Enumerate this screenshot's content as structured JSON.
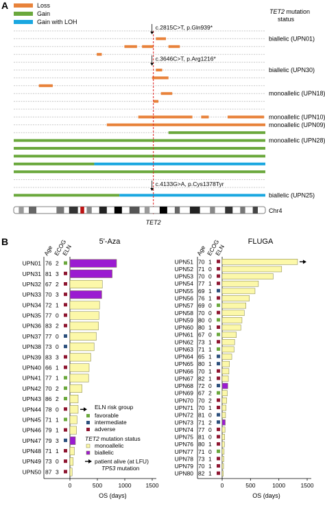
{
  "panel_labels": [
    "A",
    "B"
  ],
  "colors": {
    "loss": "#e8823a",
    "gain": "#6aa83c",
    "gain_loh": "#1aa7e0",
    "favorable": "#6aa83c",
    "intermediate": "#2b4f7c",
    "adverse": "#8e1530",
    "monoallelic": "#fcf8a9",
    "biallelic": "#9b1bd1",
    "tet2_line": "#e02020"
  },
  "panel_a": {
    "legend": [
      "Loss",
      "Gain",
      "Gain with LOH"
    ],
    "status_header": [
      "TET2 mutation",
      "status"
    ],
    "italic_gene": "TET2",
    "gene_label": "TET2",
    "chr_label": "Chr4",
    "mutations": [
      {
        "label": "c.2815C>T, p.Gln939*",
        "row": 0
      },
      {
        "label": "c.3646C>T, p.Arg1216*",
        "row": 4
      },
      {
        "label": "c.4133G>A, p.Cys1378Tyr",
        "row": 20
      }
    ],
    "status_labels": [
      {
        "label": "biallelic (UPN01)",
        "row": 1
      },
      {
        "label": "biallelic (UPN30)",
        "row": 5
      },
      {
        "label": "monoallelic (UPN18)",
        "row": 8
      },
      {
        "label": "monoallelic (UPN10)",
        "row": 11
      },
      {
        "label": "monoallelic (UPN09)",
        "row": 12
      },
      {
        "label": "monoallelic (UPN28)",
        "row": 14
      },
      {
        "label": "biallelic (UPN25)",
        "row": 21
      }
    ]
  },
  "chart_data": [
    {
      "type": "segments",
      "chromosome": "Chr4",
      "tracks": [
        {
          "row": 0,
          "segments": []
        },
        {
          "row": 1,
          "segments": [
            {
              "type": "loss",
              "start": 0.565,
              "end": 0.605
            }
          ]
        },
        {
          "row": 2,
          "segments": [
            {
              "type": "loss",
              "start": 0.44,
              "end": 0.49
            },
            {
              "type": "loss",
              "start": 0.51,
              "end": 0.555
            },
            {
              "type": "loss",
              "start": 0.615,
              "end": 0.66
            }
          ]
        },
        {
          "row": 3,
          "segments": [
            {
              "type": "loss",
              "start": 0.33,
              "end": 0.35
            }
          ]
        },
        {
          "row": 4,
          "segments": []
        },
        {
          "row": 5,
          "segments": [
            {
              "type": "loss",
              "start": 0.565,
              "end": 0.59
            }
          ]
        },
        {
          "row": 6,
          "segments": [
            {
              "type": "loss",
              "start": 0.55,
              "end": 0.615
            }
          ]
        },
        {
          "row": 7,
          "segments": [
            {
              "type": "loss",
              "start": 0.1,
              "end": 0.155
            }
          ]
        },
        {
          "row": 8,
          "segments": [
            {
              "type": "loss",
              "start": 0.585,
              "end": 0.63
            }
          ]
        },
        {
          "row": 9,
          "segments": [
            {
              "type": "loss",
              "start": 0.555,
              "end": 0.575
            }
          ]
        },
        {
          "row": 10,
          "segments": []
        },
        {
          "row": 11,
          "segments": [
            {
              "type": "loss",
              "start": 0.495,
              "end": 0.71
            },
            {
              "type": "loss",
              "start": 0.745,
              "end": 0.775
            },
            {
              "type": "loss",
              "start": 0.85,
              "end": 0.995
            }
          ]
        },
        {
          "row": 12,
          "segments": [
            {
              "type": "loss",
              "start": 0.37,
              "end": 1.0
            }
          ]
        },
        {
          "row": 13,
          "segments": [
            {
              "type": "gain",
              "start": 0.615,
              "end": 1.0
            }
          ]
        },
        {
          "row": 14,
          "segments": [
            {
              "type": "gain",
              "start": 0.0,
              "end": 1.0
            }
          ]
        },
        {
          "row": 15,
          "segments": [
            {
              "type": "gain",
              "start": 0.0,
              "end": 1.0
            }
          ]
        },
        {
          "row": 16,
          "segments": [
            {
              "type": "gain",
              "start": 0.0,
              "end": 1.0
            }
          ]
        },
        {
          "row": 17,
          "segments": [
            {
              "type": "gain",
              "start": 0.0,
              "end": 0.32
            },
            {
              "type": "gain_loh",
              "start": 0.32,
              "end": 1.0
            }
          ]
        },
        {
          "row": 18,
          "segments": [
            {
              "type": "gain",
              "start": 0.0,
              "end": 1.0
            }
          ]
        },
        {
          "row": 19,
          "segments": []
        },
        {
          "row": 20,
          "segments": []
        },
        {
          "row": 21,
          "segments": [
            {
              "type": "gain",
              "start": 0.0,
              "end": 0.42
            },
            {
              "type": "gain_loh",
              "start": 0.42,
              "end": 1.0
            }
          ]
        }
      ],
      "tet2_position": 0.555
    },
    {
      "type": "bar",
      "orientation": "horizontal",
      "title": "5'-Aza",
      "column_headers": [
        "Age",
        "ECOG",
        "ELN"
      ],
      "xlabel": "OS (days)",
      "xticks": [
        0,
        500,
        1000,
        1500
      ],
      "xlim": [
        0,
        1500
      ],
      "patients": [
        {
          "id": "UPN01",
          "age": 76,
          "ecog": 2,
          "eln": "favorable",
          "os": 850,
          "tet2": "biallelic",
          "alive": false
        },
        {
          "id": "UPN31",
          "age": 81,
          "ecog": 3,
          "eln": "adverse",
          "os": 770,
          "tet2": "biallelic",
          "alive": false
        },
        {
          "id": "UPN32",
          "age": 67,
          "ecog": 2,
          "eln": "adverse",
          "os": 590,
          "tet2": "monoallelic",
          "alive": false
        },
        {
          "id": "UPN33",
          "age": 70,
          "ecog": 3,
          "eln": "adverse",
          "os": 580,
          "tet2": "biallelic",
          "alive": false
        },
        {
          "id": "UPN34",
          "age": 72,
          "ecog": 1,
          "eln": "adverse",
          "os": 540,
          "tet2": "monoallelic",
          "alive": false
        },
        {
          "id": "UPN35",
          "age": 77,
          "ecog": 0,
          "eln": "adverse",
          "os": 530,
          "tet2": "monoallelic",
          "alive": false
        },
        {
          "id": "UPN36",
          "age": 83,
          "ecog": 2,
          "eln": "adverse",
          "os": 520,
          "tet2": "monoallelic",
          "alive": false
        },
        {
          "id": "UPN37",
          "age": 77,
          "ecog": 0,
          "eln": "intermediate",
          "os": 480,
          "tet2": "monoallelic",
          "alive": false
        },
        {
          "id": "UPN38",
          "age": 73,
          "ecog": 0,
          "eln": "intermediate",
          "os": 440,
          "tet2": "monoallelic",
          "alive": false
        },
        {
          "id": "UPN39",
          "age": 83,
          "ecog": 3,
          "eln": "adverse",
          "os": 380,
          "tet2": "monoallelic",
          "alive": false
        },
        {
          "id": "UPN40",
          "age": 66,
          "ecog": 1,
          "eln": "adverse",
          "os": 350,
          "tet2": "monoallelic",
          "alive": false
        },
        {
          "id": "UPN41",
          "age": 77,
          "ecog": 1,
          "eln": "favorable",
          "os": 340,
          "tet2": "monoallelic",
          "alive": false
        },
        {
          "id": "UPN42",
          "age": 70,
          "ecog": 2,
          "eln": "favorable",
          "os": 220,
          "tet2": "monoallelic",
          "alive": false
        },
        {
          "id": "UPN43",
          "age": 86,
          "ecog": 2,
          "eln": "favorable",
          "os": 150,
          "tet2": "monoallelic",
          "alive": false
        },
        {
          "id": "UPN44",
          "age": 78,
          "ecog": 0,
          "eln": "adverse",
          "os": 150,
          "tet2": "monoallelic",
          "alive": true
        },
        {
          "id": "UPN45",
          "age": 71,
          "ecog": 1,
          "eln": "favorable",
          "os": 130,
          "tet2": "monoallelic",
          "alive": false
        },
        {
          "id": "UPN46",
          "age": 79,
          "ecog": 1,
          "eln": "adverse",
          "os": 120,
          "tet2": "monoallelic",
          "alive": false
        },
        {
          "id": "UPN47",
          "age": 79,
          "ecog": 3,
          "eln": "intermediate",
          "os": 100,
          "tet2": "biallelic",
          "alive": false
        },
        {
          "id": "UPN48",
          "age": 71,
          "ecog": 1,
          "eln": "adverse",
          "os": 80,
          "tet2": "monoallelic",
          "alive": false
        },
        {
          "id": "UPN49",
          "age": 73,
          "ecog": 0,
          "eln": "adverse",
          "os": 60,
          "tet2": "monoallelic",
          "alive": false
        },
        {
          "id": "UPN50",
          "age": 87,
          "ecog": 3,
          "eln": "adverse",
          "os": 40,
          "tet2": "monoallelic",
          "alive": false
        }
      ]
    },
    {
      "type": "bar",
      "orientation": "horizontal",
      "title": "FLUGA",
      "column_headers": [
        "Age",
        "ECOG",
        "ELN"
      ],
      "xlabel": "OS (days)",
      "xticks": [
        0,
        500,
        1000,
        1500
      ],
      "xlim": [
        0,
        1500
      ],
      "patients": [
        {
          "id": "UPN51",
          "age": 70,
          "ecog": 1,
          "eln": "adverse",
          "os": 1330,
          "tet2": "monoallelic",
          "alive": true
        },
        {
          "id": "UPN52",
          "age": 71,
          "ecog": 0,
          "eln": "adverse",
          "os": 1050,
          "tet2": "monoallelic",
          "alive": false
        },
        {
          "id": "UPN53",
          "age": 70,
          "ecog": 0,
          "eln": "adverse",
          "os": 900,
          "tet2": "monoallelic",
          "alive": false
        },
        {
          "id": "UPN54",
          "age": 77,
          "ecog": 1,
          "eln": "adverse",
          "os": 640,
          "tet2": "monoallelic",
          "alive": false
        },
        {
          "id": "UPN55",
          "age": 69,
          "ecog": 1,
          "eln": "intermediate",
          "os": 580,
          "tet2": "monoallelic",
          "alive": false
        },
        {
          "id": "UPN56",
          "age": 76,
          "ecog": 1,
          "eln": "adverse",
          "os": 480,
          "tet2": "monoallelic",
          "alive": false
        },
        {
          "id": "UPN57",
          "age": 69,
          "ecog": 0,
          "eln": "favorable",
          "os": 420,
          "tet2": "monoallelic",
          "alive": false
        },
        {
          "id": "UPN58",
          "age": 70,
          "ecog": 0,
          "eln": "adverse",
          "os": 390,
          "tet2": "monoallelic",
          "alive": false
        },
        {
          "id": "UPN59",
          "age": 80,
          "ecog": 0,
          "eln": "favorable",
          "os": 350,
          "tet2": "monoallelic",
          "alive": false
        },
        {
          "id": "UPN60",
          "age": 80,
          "ecog": 1,
          "eln": "adverse",
          "os": 330,
          "tet2": "monoallelic",
          "alive": false
        },
        {
          "id": "UPN61",
          "age": 67,
          "ecog": 0,
          "eln": "favorable",
          "os": 250,
          "tet2": "monoallelic",
          "alive": false
        },
        {
          "id": "UPN62",
          "age": 73,
          "ecog": 1,
          "eln": "adverse",
          "os": 220,
          "tet2": "monoallelic",
          "alive": false
        },
        {
          "id": "UPN63",
          "age": 71,
          "ecog": 1,
          "eln": "favorable",
          "os": 210,
          "tet2": "monoallelic",
          "alive": false
        },
        {
          "id": "UPN64",
          "age": 65,
          "ecog": 1,
          "eln": "intermediate",
          "os": 170,
          "tet2": "monoallelic",
          "alive": false
        },
        {
          "id": "UPN65",
          "age": 80,
          "ecog": 1,
          "eln": "intermediate",
          "os": 130,
          "tet2": "monoallelic",
          "alive": false
        },
        {
          "id": "UPN66",
          "age": 70,
          "ecog": 1,
          "eln": "adverse",
          "os": 120,
          "tet2": "monoallelic",
          "alive": false
        },
        {
          "id": "UPN67",
          "age": 82,
          "ecog": 1,
          "eln": "adverse",
          "os": 110,
          "tet2": "monoallelic",
          "alive": false
        },
        {
          "id": "UPN68",
          "age": 72,
          "ecog": 0,
          "eln": "intermediate",
          "os": 100,
          "tet2": "biallelic",
          "alive": false
        },
        {
          "id": "UPN69",
          "age": 67,
          "ecog": 2,
          "eln": "favorable",
          "os": 90,
          "tet2": "monoallelic",
          "alive": false
        },
        {
          "id": "UPN70",
          "age": 70,
          "ecog": 2,
          "eln": "adverse",
          "os": 80,
          "tet2": "monoallelic",
          "alive": false
        },
        {
          "id": "UPN71",
          "age": 70,
          "ecog": 1,
          "eln": "adverse",
          "os": 70,
          "tet2": "monoallelic",
          "alive": false
        },
        {
          "id": "UPN72",
          "age": 81,
          "ecog": 0,
          "eln": "intermediate",
          "os": 60,
          "tet2": "monoallelic",
          "alive": false
        },
        {
          "id": "UPN73",
          "age": 71,
          "ecog": 2,
          "eln": "intermediate",
          "os": 55,
          "tet2": "biallelic",
          "alive": false
        },
        {
          "id": "UPN74",
          "age": 77,
          "ecog": 0,
          "eln": "adverse",
          "os": 50,
          "tet2": "monoallelic",
          "alive": false
        },
        {
          "id": "UPN75",
          "age": 81,
          "ecog": 0,
          "eln": "adverse",
          "os": 45,
          "tet2": "monoallelic",
          "alive": false
        },
        {
          "id": "UPN76",
          "age": 80,
          "ecog": 1,
          "eln": "adverse",
          "os": 40,
          "tet2": "monoallelic",
          "alive": false
        },
        {
          "id": "UPN77",
          "age": 71,
          "ecog": 0,
          "eln": "favorable",
          "os": 35,
          "tet2": "monoallelic",
          "alive": false
        },
        {
          "id": "UPN78",
          "age": 73,
          "ecog": 1,
          "eln": "adverse",
          "os": 30,
          "tet2": "monoallelic",
          "alive": false
        },
        {
          "id": "UPN79",
          "age": 70,
          "ecog": 1,
          "eln": "adverse",
          "os": 25,
          "tet2": "monoallelic",
          "alive": false
        },
        {
          "id": "UPN80",
          "age": 82,
          "ecog": 1,
          "eln": "adverse",
          "os": 20,
          "tet2": "monoallelic",
          "alive": false
        }
      ]
    }
  ],
  "panel_b_legend": {
    "eln_title": "ELN risk group",
    "eln_items": [
      "favorable",
      "intermediate",
      "adverse"
    ],
    "tet2_title_italic": "TET2",
    "tet2_title_rest": " mutation status",
    "tet2_items": [
      "monoallelic",
      "biallelic"
    ],
    "alive_label": "patient alive (at LFU)",
    "tp53_italic": "TP53",
    "tp53_rest": " mutation"
  }
}
